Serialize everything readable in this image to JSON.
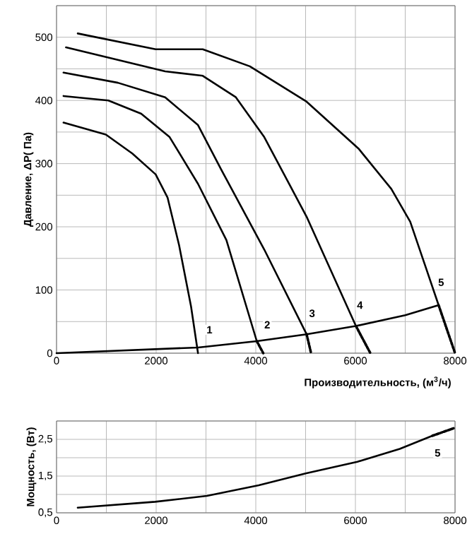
{
  "chart_data": [
    {
      "type": "line",
      "xlabel": "Производительность, (м$^{3}$/ч)",
      "ylabel": "Давление, ΔP( Па)",
      "xlim": [
        0,
        8000
      ],
      "ylim": [
        0,
        550
      ],
      "xticks": [
        0,
        {
          "value": 1000,
          "label": null
        },
        2000,
        {
          "value": 3000,
          "label": null
        },
        4000,
        {
          "value": 5000,
          "label": null
        },
        6000,
        {
          "value": 7000,
          "label": null
        },
        8000
      ],
      "yticks": [
        0,
        {
          "value": 50,
          "label": null
        },
        100,
        {
          "value": 150,
          "label": null
        },
        200,
        {
          "value": 250,
          "label": null
        },
        300,
        {
          "value": 350,
          "label": null
        },
        400,
        {
          "value": 450,
          "label": null
        },
        500,
        {
          "value": 550,
          "label": null
        }
      ],
      "grid": true,
      "marker": "none",
      "series": [
        {
          "color": "#000000",
          "line_style": "solid",
          "x": [
            140,
            990,
            1520,
            1990,
            2230,
            2460,
            2700,
            2840
          ],
          "values": [
            365,
            346,
            316,
            283,
            246,
            171,
            74,
            0
          ]
        },
        {
          "color": "#000000",
          "line_style": "solid",
          "x": [
            140,
            1040,
            1700,
            2270,
            2840,
            3410,
            4020
          ],
          "values": [
            407,
            400,
            379,
            342,
            268,
            179,
            19
          ]
        },
        {
          "color": "#000000",
          "line_style": "dotted",
          "x": [
            4020,
            4150
          ],
          "values": [
            19,
            0
          ]
        },
        {
          "color": "#000000",
          "line_style": "solid",
          "x": [
            140,
            1230,
            2180,
            2840,
            3310,
            4170,
            5020
          ],
          "values": [
            444,
            428,
            405,
            361,
            290,
            164,
            30
          ]
        },
        {
          "color": "#000000",
          "line_style": "dotted",
          "x": [
            5020,
            5110
          ],
          "values": [
            30,
            0
          ]
        },
        {
          "color": "#000000",
          "line_style": "solid",
          "x": [
            190,
            2180,
            2935,
            3600,
            4170,
            5020,
            6010
          ],
          "values": [
            484,
            446,
            439,
            405,
            342,
            216,
            43
          ]
        },
        {
          "color": "#000000",
          "line_style": "dotted",
          "x": [
            6010,
            6300
          ],
          "values": [
            43,
            0
          ]
        },
        {
          "color": "#000000",
          "line_style": "solid",
          "x": [
            426,
            1990,
            2935,
            3880,
            5020,
            6060,
            6720,
            7100,
            7390,
            7670
          ],
          "values": [
            506,
            481,
            481,
            454,
            398,
            324,
            260,
            208,
            141,
            76
          ]
        },
        {
          "color": "#000000",
          "line_style": "dotted",
          "x": [
            7670,
            8000
          ],
          "values": [
            76,
            0
          ]
        },
        {
          "color": "#000000",
          "line_style": "solid",
          "x": [
            0,
            2840,
            4020,
            5020,
            6010,
            7000,
            7670
          ],
          "values": [
            0,
            9,
            19,
            30,
            43,
            60,
            76
          ]
        }
      ],
      "annotations": [
        {
          "text": "1",
          "x": 3070,
          "y": 37
        },
        {
          "text": "2",
          "x": 4230,
          "y": 45
        },
        {
          "text": "3",
          "x": 5130,
          "y": 63
        },
        {
          "text": "4",
          "x": 6090,
          "y": 76
        },
        {
          "text": "5",
          "x": 7720,
          "y": 112
        }
      ]
    },
    {
      "type": "line",
      "ylabel": "Мощность, (Вт)",
      "xlim": [
        0,
        8000
      ],
      "ylim": [
        0.5,
        3
      ],
      "xticks": [
        0,
        {
          "value": 1000,
          "label": null
        },
        2000,
        {
          "value": 3000,
          "label": null
        },
        4000,
        {
          "value": 5000,
          "label": null
        },
        6000,
        {
          "value": 7000,
          "label": null
        },
        8000
      ],
      "yticks": [
        {
          "value": 0.5,
          "label": "0,5"
        },
        {
          "value": 1,
          "label": null
        },
        {
          "value": 1.5,
          "label": "1,5"
        },
        {
          "value": 2,
          "label": null
        },
        {
          "value": 2.5,
          "label": "2,5"
        },
        {
          "value": 3,
          "label": null
        }
      ],
      "grid": true,
      "marker": "none",
      "series": [
        {
          "color": "#000000",
          "line_style": "solid",
          "x": [
            425,
            1980,
            3020,
            4060,
            5000,
            6040,
            6890,
            7550
          ],
          "values": [
            0.64,
            0.8,
            0.96,
            1.25,
            1.57,
            1.89,
            2.24,
            2.6
          ]
        },
        {
          "color": "#000000",
          "line_style": "dotted",
          "x": [
            7550,
            7970
          ],
          "values": [
            2.6,
            2.8
          ]
        }
      ],
      "annotations": [
        {
          "text": "5",
          "x": 7650,
          "y": 2.13
        }
      ]
    }
  ]
}
